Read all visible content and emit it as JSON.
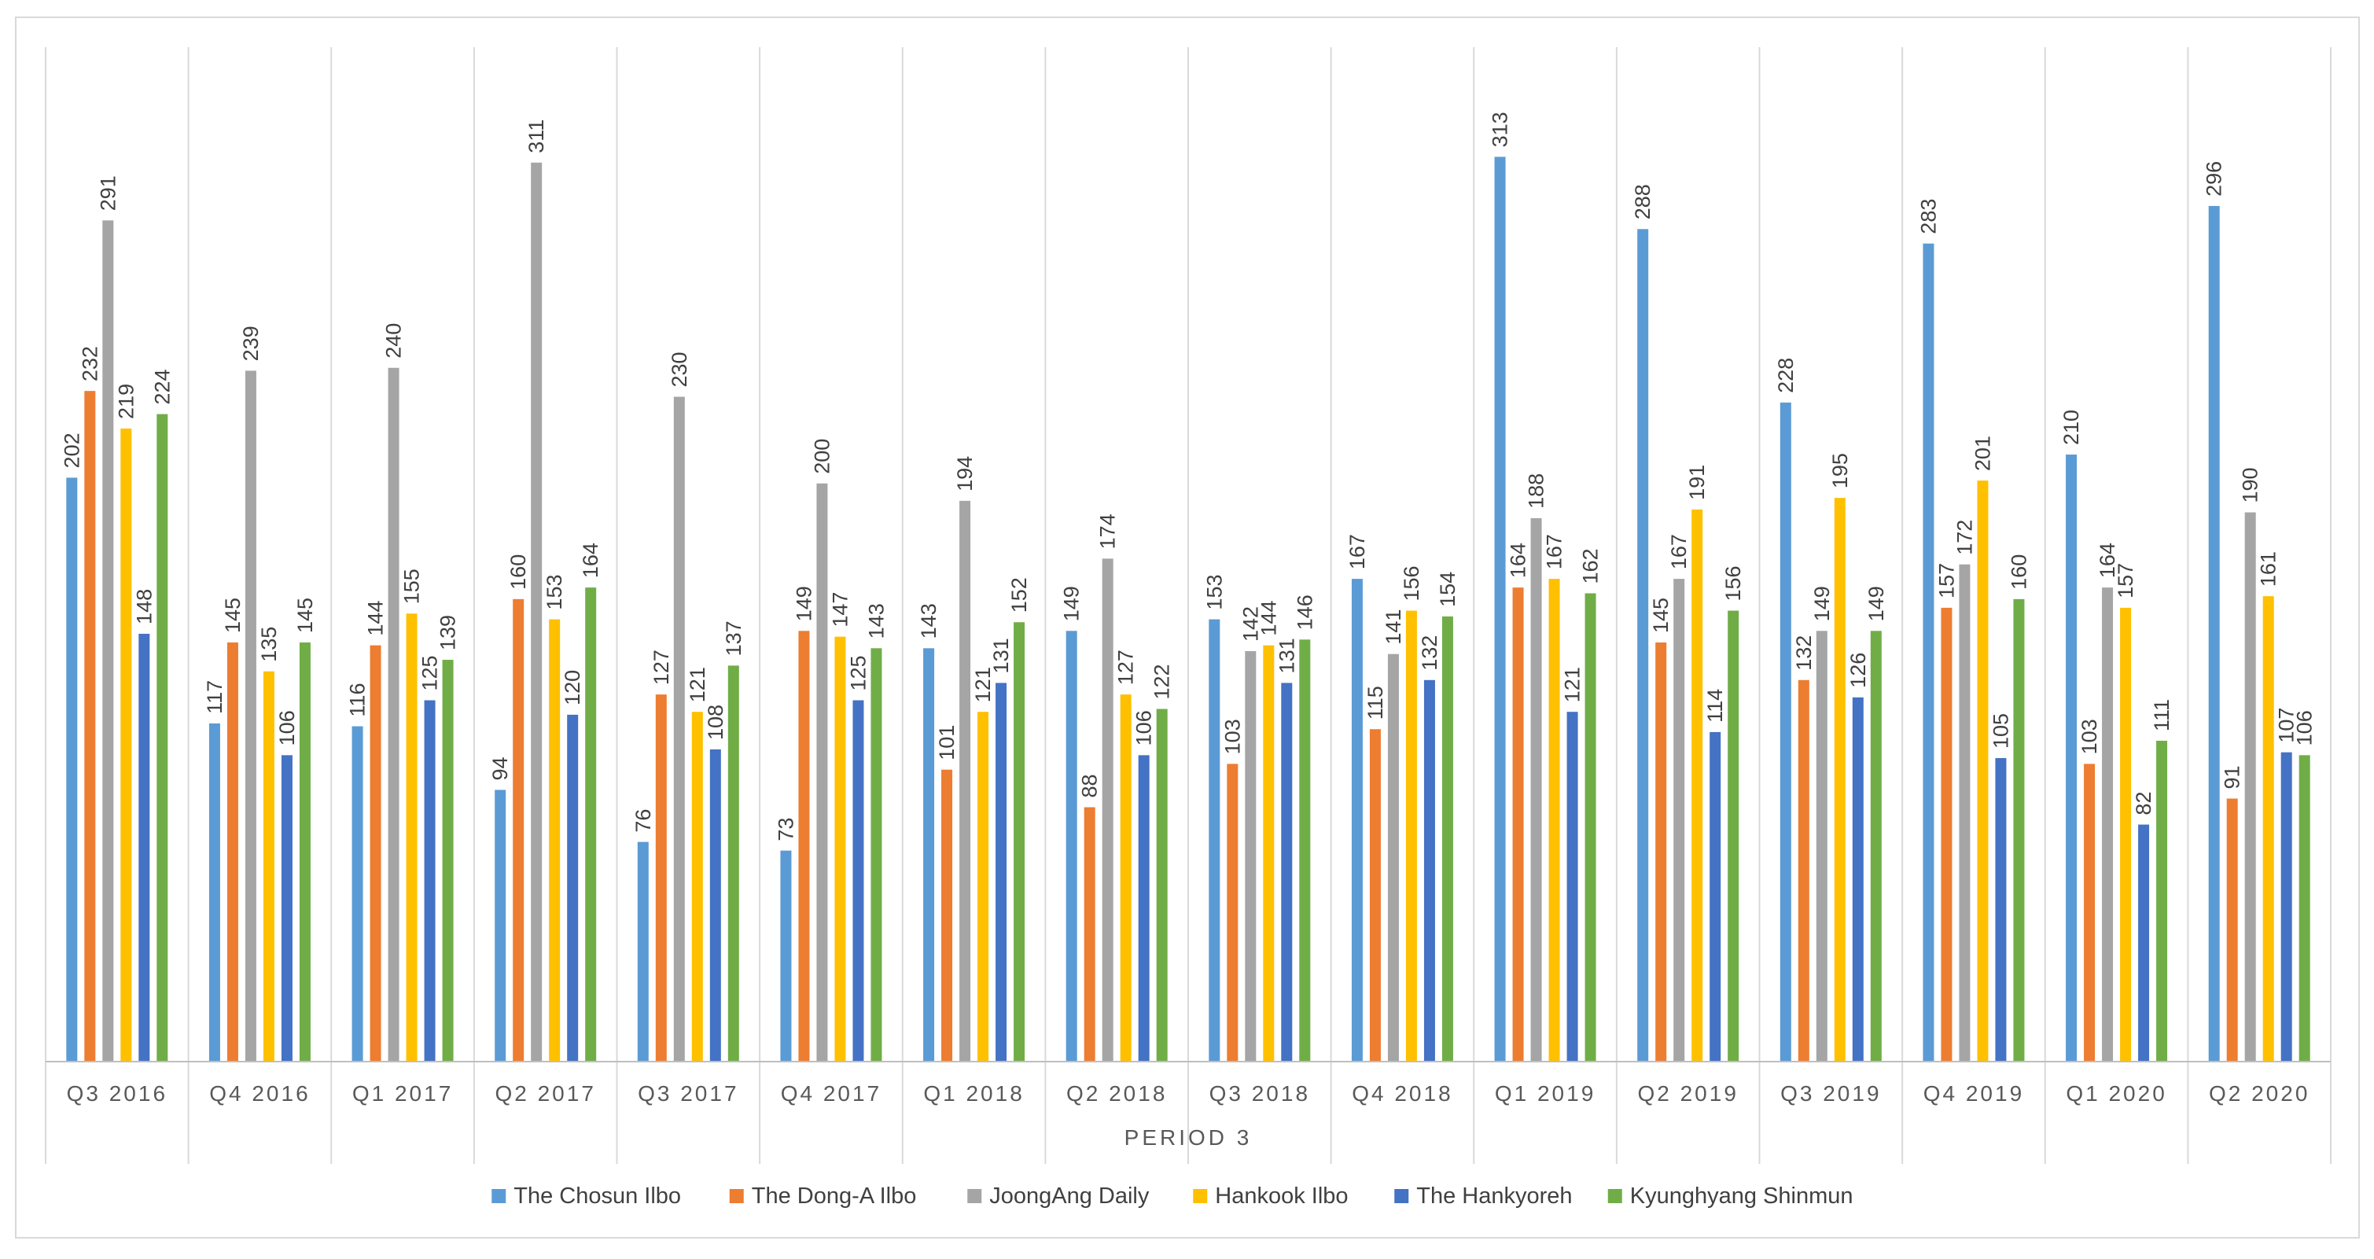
{
  "chart_data": {
    "type": "bar",
    "title": "",
    "xlabel": "PERIOD 3",
    "ylabel": "",
    "ylim": [
      0,
      340
    ],
    "grid": "vertical category separators",
    "legend_position": "bottom",
    "categories": [
      "Q3 2016",
      "Q4 2016",
      "Q1 2017",
      "Q2 2017",
      "Q3 2017",
      "Q4 2017",
      "Q1 2018",
      "Q2 2018",
      "Q3 2018",
      "Q4 2018",
      "Q1 2019",
      "Q2 2019",
      "Q3 2019",
      "Q4 2019",
      "Q1 2020",
      "Q2 2020"
    ],
    "series": [
      {
        "name": "The Chosun Ilbo",
        "color": "#5B9BD5",
        "values": [
          202,
          117,
          116,
          94,
          76,
          73,
          143,
          149,
          153,
          167,
          313,
          288,
          228,
          283,
          210,
          296
        ]
      },
      {
        "name": "The Dong-A Ilbo",
        "color": "#ED7D31",
        "values": [
          232,
          145,
          144,
          160,
          127,
          149,
          101,
          88,
          103,
          115,
          164,
          145,
          132,
          157,
          103,
          91
        ]
      },
      {
        "name": "JoongAng Daily",
        "color": "#A5A5A5",
        "values": [
          291,
          239,
          240,
          311,
          230,
          200,
          194,
          174,
          142,
          141,
          188,
          167,
          149,
          172,
          164,
          190
        ]
      },
      {
        "name": "Hankook Ilbo",
        "color": "#FFC000",
        "values": [
          219,
          135,
          155,
          153,
          121,
          147,
          121,
          127,
          144,
          156,
          167,
          191,
          195,
          201,
          157,
          161
        ]
      },
      {
        "name": "The Hankyoreh",
        "color": "#4472C4",
        "values": [
          148,
          106,
          125,
          120,
          108,
          125,
          131,
          106,
          131,
          132,
          121,
          114,
          126,
          105,
          82,
          107
        ]
      },
      {
        "name": "Kyunghyang Shinmun",
        "color": "#70AD47",
        "values": [
          224,
          145,
          139,
          164,
          137,
          143,
          152,
          122,
          146,
          154,
          162,
          156,
          149,
          160,
          111,
          106
        ]
      }
    ]
  }
}
